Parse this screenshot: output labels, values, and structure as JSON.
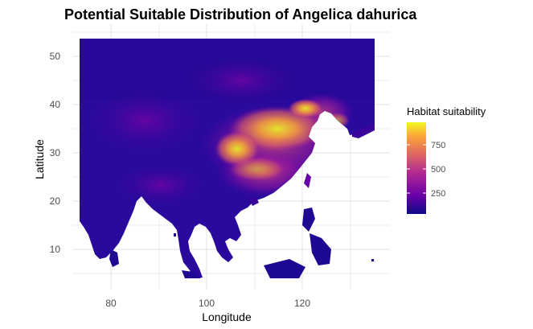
{
  "chart_data": {
    "type": "heatmap",
    "title": "Potential Suitable Distribution of Angelica dahurica",
    "xlabel": "Longitude",
    "ylabel": "Latitude",
    "xlim": [
      73,
      135
    ],
    "ylim": [
      3,
      54
    ],
    "x_ticks": [
      80,
      100,
      120
    ],
    "y_ticks": [
      10,
      20,
      30,
      40,
      50
    ],
    "grid": true,
    "legend": {
      "title": "Habitat suitability",
      "position": "right",
      "ticks": [
        250,
        500,
        750
      ],
      "range": [
        0,
        950
      ],
      "colors": [
        "#0d0887",
        "#6a00a8",
        "#b12a90",
        "#e16462",
        "#fca636",
        "#f0f921"
      ]
    }
  }
}
